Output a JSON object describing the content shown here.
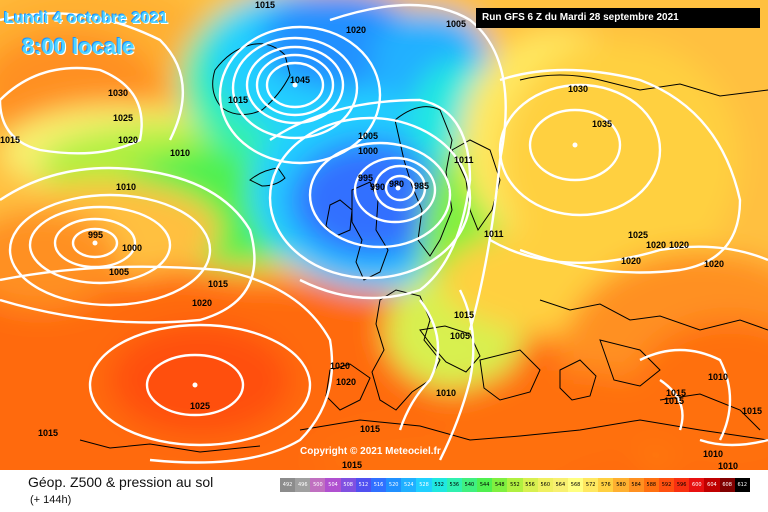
{
  "header": {
    "date": "Lundi 4 octobre 2021",
    "local_time": "8:00 locale",
    "run_info": "Run GFS 6 Z du Mardi 28 septembre 2021"
  },
  "map": {
    "copyright": "Copyright © 2021 Meteociel.fr",
    "isobar_labels": [
      {
        "text": "1015"
      },
      {
        "text": "1020"
      },
      {
        "text": "1005"
      },
      {
        "text": "1030"
      },
      {
        "text": "1025"
      },
      {
        "text": "1020"
      },
      {
        "text": "1015"
      },
      {
        "text": "1010"
      },
      {
        "text": "1010"
      },
      {
        "text": "1045"
      },
      {
        "text": "1015"
      },
      {
        "text": "1005"
      },
      {
        "text": "1000"
      },
      {
        "text": "995"
      },
      {
        "text": "990"
      },
      {
        "text": "980"
      },
      {
        "text": "985"
      },
      {
        "text": "1011"
      },
      {
        "text": "1011"
      },
      {
        "text": "1030"
      },
      {
        "text": "1035"
      },
      {
        "text": "1025"
      },
      {
        "text": "1020"
      },
      {
        "text": "1020"
      },
      {
        "text": "1020"
      },
      {
        "text": "1020"
      },
      {
        "text": "995"
      },
      {
        "text": "1000"
      },
      {
        "text": "1005"
      },
      {
        "text": "1015"
      },
      {
        "text": "1020"
      },
      {
        "text": "1015"
      },
      {
        "text": "1005"
      },
      {
        "text": "1020"
      },
      {
        "text": "1020"
      },
      {
        "text": "1010"
      },
      {
        "text": "1025"
      },
      {
        "text": "1015"
      },
      {
        "text": "1015"
      },
      {
        "text": "1015"
      },
      {
        "text": "1015"
      },
      {
        "text": "1010"
      },
      {
        "text": "1015"
      },
      {
        "text": "1010"
      },
      {
        "text": "1010"
      },
      {
        "text": "1015"
      }
    ]
  },
  "footer": {
    "title": "Géop. Z500 & pression au sol",
    "subtitle": "(+ 144h)",
    "scale_labels": [
      "492",
      "496",
      "500",
      "504",
      "508",
      "512",
      "516",
      "520",
      "524",
      "528",
      "532",
      "536",
      "540",
      "544",
      "548",
      "552",
      "556",
      "560",
      "564",
      "568",
      "572",
      "576",
      "580",
      "584",
      "588",
      "592",
      "596",
      "600",
      "604",
      "608",
      "612"
    ],
    "scale_colors": [
      "#8c8c8c",
      "#a0a0a0",
      "#c070c0",
      "#b050d0",
      "#8050e0",
      "#5050f0",
      "#3070ff",
      "#2090ff",
      "#20b0ff",
      "#20d0ff",
      "#20e8e0",
      "#30f0b0",
      "#40f080",
      "#50f050",
      "#80f040",
      "#b0f040",
      "#d8f050",
      "#f0f060",
      "#f8f070",
      "#ffff80",
      "#ffe860",
      "#ffd040",
      "#ffb030",
      "#ff9020",
      "#ff7010",
      "#ff5010",
      "#f83010",
      "#e81010",
      "#c00000",
      "#800000",
      "#000000"
    ]
  }
}
